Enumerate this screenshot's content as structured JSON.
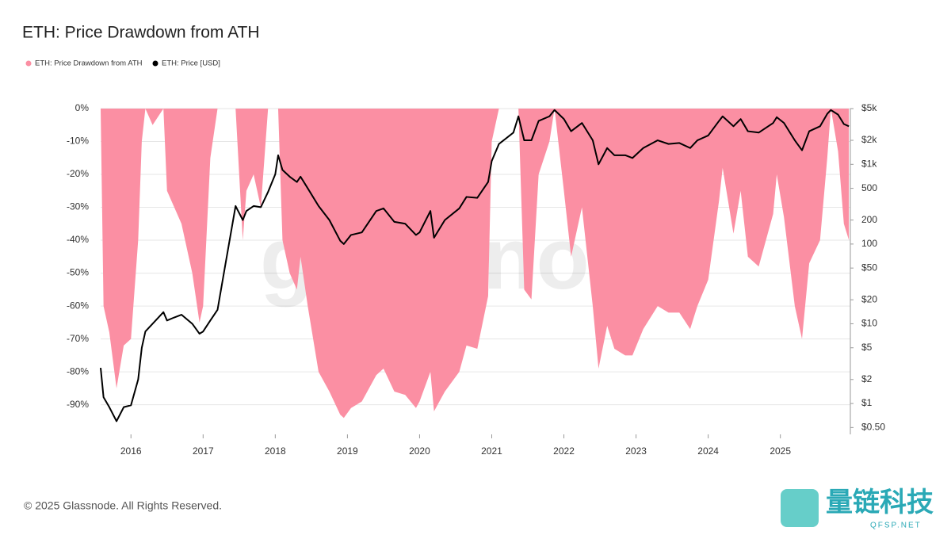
{
  "chart_data": {
    "type": "area-line",
    "title": "ETH: Price Drawdown from ATH",
    "watermark": "glassnode",
    "footer": "© 2025 Glassnode. All Rights Reserved.",
    "logo": {
      "name": "量链科技",
      "site": "QFSP.NET"
    },
    "x": [
      2015.58,
      2015.62,
      2015.7,
      2015.8,
      2015.9,
      2016.0,
      2016.1,
      2016.15,
      2016.2,
      2016.3,
      2016.45,
      2016.5,
      2016.6,
      2016.7,
      2016.85,
      2016.95,
      2017.0,
      2017.1,
      2017.2,
      2017.3,
      2017.45,
      2017.55,
      2017.6,
      2017.7,
      2017.8,
      2017.9,
      2018.0,
      2018.04,
      2018.1,
      2018.2,
      2018.3,
      2018.35,
      2018.45,
      2018.6,
      2018.75,
      2018.9,
      2018.95,
      2019.05,
      2019.2,
      2019.4,
      2019.5,
      2019.65,
      2019.8,
      2019.95,
      2020.0,
      2020.15,
      2020.2,
      2020.35,
      2020.55,
      2020.65,
      2020.8,
      2020.95,
      2021.0,
      2021.1,
      2021.3,
      2021.37,
      2021.45,
      2021.55,
      2021.65,
      2021.8,
      2021.87,
      2022.0,
      2022.1,
      2022.25,
      2022.4,
      2022.48,
      2022.6,
      2022.7,
      2022.85,
      2022.95,
      2023.1,
      2023.3,
      2023.45,
      2023.6,
      2023.75,
      2023.85,
      2024.0,
      2024.15,
      2024.2,
      2024.35,
      2024.45,
      2024.55,
      2024.7,
      2024.9,
      2024.95,
      2025.05,
      2025.2,
      2025.3,
      2025.4,
      2025.55,
      2025.65,
      2025.7,
      2025.8,
      2025.88,
      2025.95
    ],
    "series": [
      {
        "name": "ETH: Price Drawdown from ATH",
        "color": "#fb8fa3",
        "values": [
          0,
          -60,
          -68,
          -85,
          -72,
          -70,
          -40,
          -10,
          0,
          -5,
          0,
          -25,
          -30,
          -35,
          -50,
          -65,
          -60,
          -15,
          0,
          0,
          0,
          -40,
          -25,
          -20,
          -30,
          0,
          0,
          0,
          -40,
          -50,
          -55,
          -45,
          -60,
          -80,
          -86,
          -93,
          -94,
          -91,
          -89,
          -81,
          -79,
          -86,
          -87,
          -91,
          -89,
          -80,
          -92,
          -86,
          -80,
          -72,
          -73,
          -57,
          -10,
          0,
          0,
          0,
          -55,
          -58,
          -20,
          -10,
          0,
          -25,
          -45,
          -30,
          -60,
          -79,
          -66,
          -73,
          -75,
          -75,
          -67,
          -60,
          -62,
          -62,
          -67,
          -60,
          -52,
          -28,
          -18,
          -38,
          -25,
          -45,
          -48,
          -32,
          -20,
          -33,
          -60,
          -70,
          -47,
          -40,
          -15,
          0,
          -13,
          -35,
          -40
        ]
      },
      {
        "name": "ETH: Price [USD]",
        "color": "#000000",
        "axis": "y2",
        "values": [
          2.8,
          1.2,
          0.9,
          0.6,
          0.9,
          0.95,
          2.0,
          5,
          8,
          10,
          14,
          11,
          12,
          13,
          10,
          7.5,
          8,
          11,
          15,
          50,
          300,
          200,
          260,
          300,
          290,
          450,
          750,
          1300,
          850,
          700,
          600,
          700,
          500,
          300,
          200,
          110,
          100,
          130,
          140,
          260,
          280,
          190,
          180,
          130,
          140,
          260,
          120,
          200,
          280,
          390,
          380,
          600,
          1100,
          1800,
          2500,
          4000,
          2000,
          2000,
          3500,
          4000,
          4800,
          3700,
          2600,
          3300,
          2000,
          1000,
          1600,
          1300,
          1300,
          1200,
          1600,
          2000,
          1800,
          1850,
          1600,
          2000,
          2300,
          3500,
          4000,
          3000,
          3700,
          2600,
          2500,
          3300,
          3900,
          3300,
          2000,
          1500,
          2600,
          3000,
          4300,
          4800,
          4200,
          3200,
          3000
        ]
      }
    ],
    "xlim": [
      2015.58,
      2025.97
    ],
    "xticks": [
      2016,
      2017,
      2018,
      2019,
      2020,
      2021,
      2022,
      2023,
      2024,
      2025
    ],
    "ylim": [
      -99,
      0
    ],
    "yticks": [
      {
        "value": 0,
        "label": "0%"
      },
      {
        "value": -10,
        "label": "-10%"
      },
      {
        "value": -20,
        "label": "-20%"
      },
      {
        "value": -30,
        "label": "-30%"
      },
      {
        "value": -40,
        "label": "-40%"
      },
      {
        "value": -50,
        "label": "-50%"
      },
      {
        "value": -60,
        "label": "-60%"
      },
      {
        "value": -70,
        "label": "-70%"
      },
      {
        "value": -80,
        "label": "-80%"
      },
      {
        "value": -90,
        "label": "-90%"
      }
    ],
    "y2lim": [
      0.41,
      5000
    ],
    "y2scale": "log",
    "y2ticks": [
      {
        "value": 5000,
        "label": "$5k"
      },
      {
        "value": 2000,
        "label": "$2k"
      },
      {
        "value": 1000,
        "label": "$1k"
      },
      {
        "value": 500,
        "label": "500"
      },
      {
        "value": 200,
        "label": "200"
      },
      {
        "value": 100,
        "label": "100"
      },
      {
        "value": 50,
        "label": "$50"
      },
      {
        "value": 20,
        "label": "$20"
      },
      {
        "value": 10,
        "label": "$10"
      },
      {
        "value": 5,
        "label": "$5"
      },
      {
        "value": 2,
        "label": "$2"
      },
      {
        "value": 1,
        "label": "$1"
      },
      {
        "value": 0.5,
        "label": "$0.50"
      }
    ],
    "grid": true
  }
}
